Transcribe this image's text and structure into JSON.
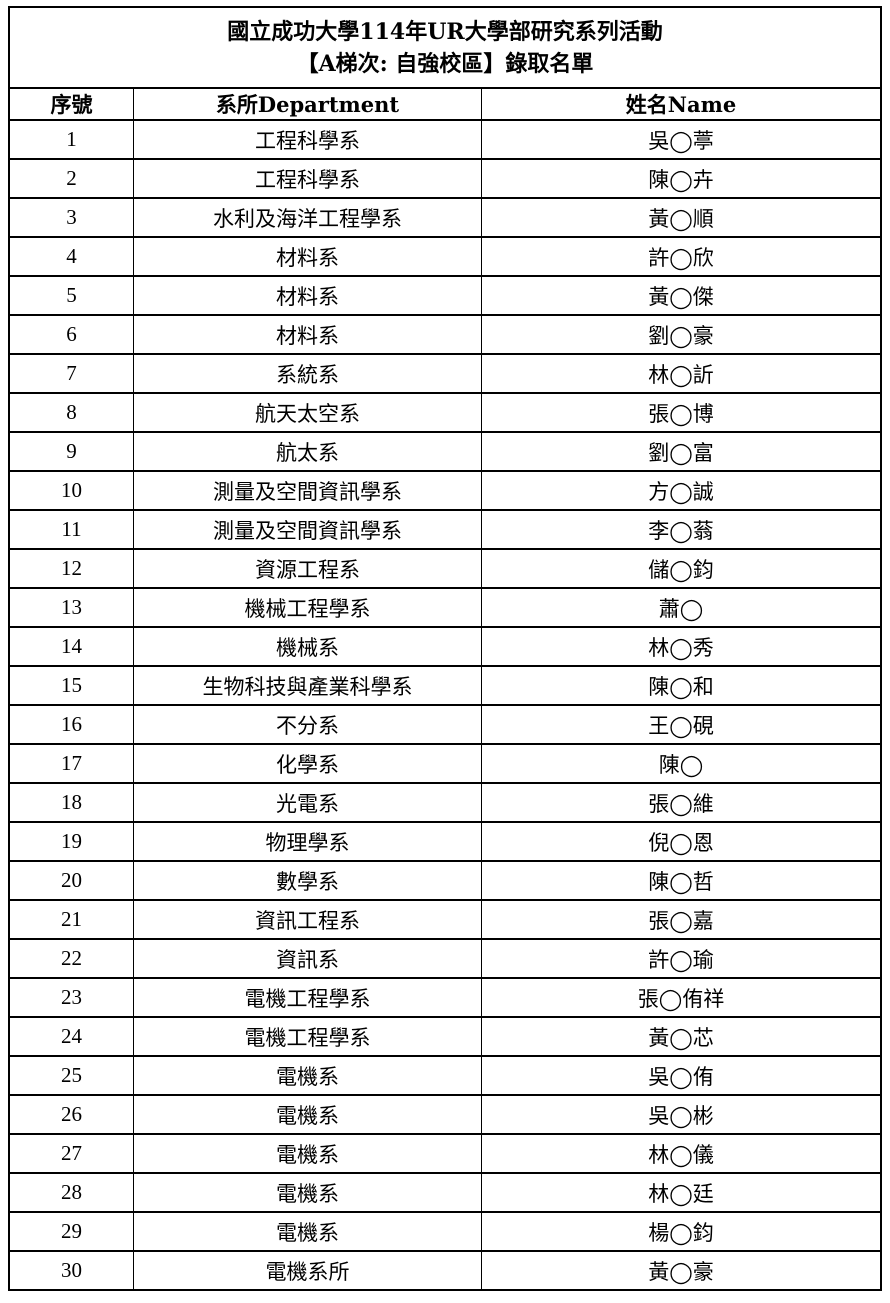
{
  "title": {
    "line1": "國立成功大學114年UR大學部研究系列活動",
    "line2": "【A梯次: 自強校區】錄取名單"
  },
  "headers": {
    "no": "序號",
    "department": "系所Department",
    "name": "姓名Name"
  },
  "rows": [
    {
      "no": "1",
      "department": "工程科學系",
      "name": "吳◯葶"
    },
    {
      "no": "2",
      "department": "工程科學系",
      "name": "陳◯卉"
    },
    {
      "no": "3",
      "department": "水利及海洋工程學系",
      "name": "黃◯順"
    },
    {
      "no": "4",
      "department": "材料系",
      "name": "許◯欣"
    },
    {
      "no": "5",
      "department": "材料系",
      "name": "黃◯傑"
    },
    {
      "no": "6",
      "department": "材料系",
      "name": "劉◯豪"
    },
    {
      "no": "7",
      "department": "系統系",
      "name": "林◯訢"
    },
    {
      "no": "8",
      "department": "航天太空系",
      "name": "張◯博"
    },
    {
      "no": "9",
      "department": "航太系",
      "name": "劉◯富"
    },
    {
      "no": "10",
      "department": "測量及空間資訊學系",
      "name": "方◯誠"
    },
    {
      "no": "11",
      "department": "測量及空間資訊學系",
      "name": "李◯蓊"
    },
    {
      "no": "12",
      "department": "資源工程系",
      "name": "儲◯鈞"
    },
    {
      "no": "13",
      "department": "機械工程學系",
      "name": "蕭◯"
    },
    {
      "no": "14",
      "department": "機械系",
      "name": "林◯秀"
    },
    {
      "no": "15",
      "department": "生物科技與產業科學系",
      "name": "陳◯和"
    },
    {
      "no": "16",
      "department": "不分系",
      "name": "王◯硯"
    },
    {
      "no": "17",
      "department": "化學系",
      "name": "陳◯"
    },
    {
      "no": "18",
      "department": "光電系",
      "name": "張◯維"
    },
    {
      "no": "19",
      "department": "物理學系",
      "name": "倪◯恩"
    },
    {
      "no": "20",
      "department": "數學系",
      "name": "陳◯哲"
    },
    {
      "no": "21",
      "department": "資訊工程系",
      "name": "張◯嘉"
    },
    {
      "no": "22",
      "department": "資訊系",
      "name": "許◯瑜"
    },
    {
      "no": "23",
      "department": "電機工程學系",
      "name": "張◯侑祥"
    },
    {
      "no": "24",
      "department": "電機工程學系",
      "name": "黃◯芯"
    },
    {
      "no": "25",
      "department": "電機系",
      "name": "吳◯侑"
    },
    {
      "no": "26",
      "department": "電機系",
      "name": "吳◯彬"
    },
    {
      "no": "27",
      "department": "電機系",
      "name": "林◯儀"
    },
    {
      "no": "28",
      "department": "電機系",
      "name": "林◯廷"
    },
    {
      "no": "29",
      "department": "電機系",
      "name": "楊◯鈞"
    },
    {
      "no": "30",
      "department": "電機系所",
      "name": "黃◯豪"
    }
  ]
}
